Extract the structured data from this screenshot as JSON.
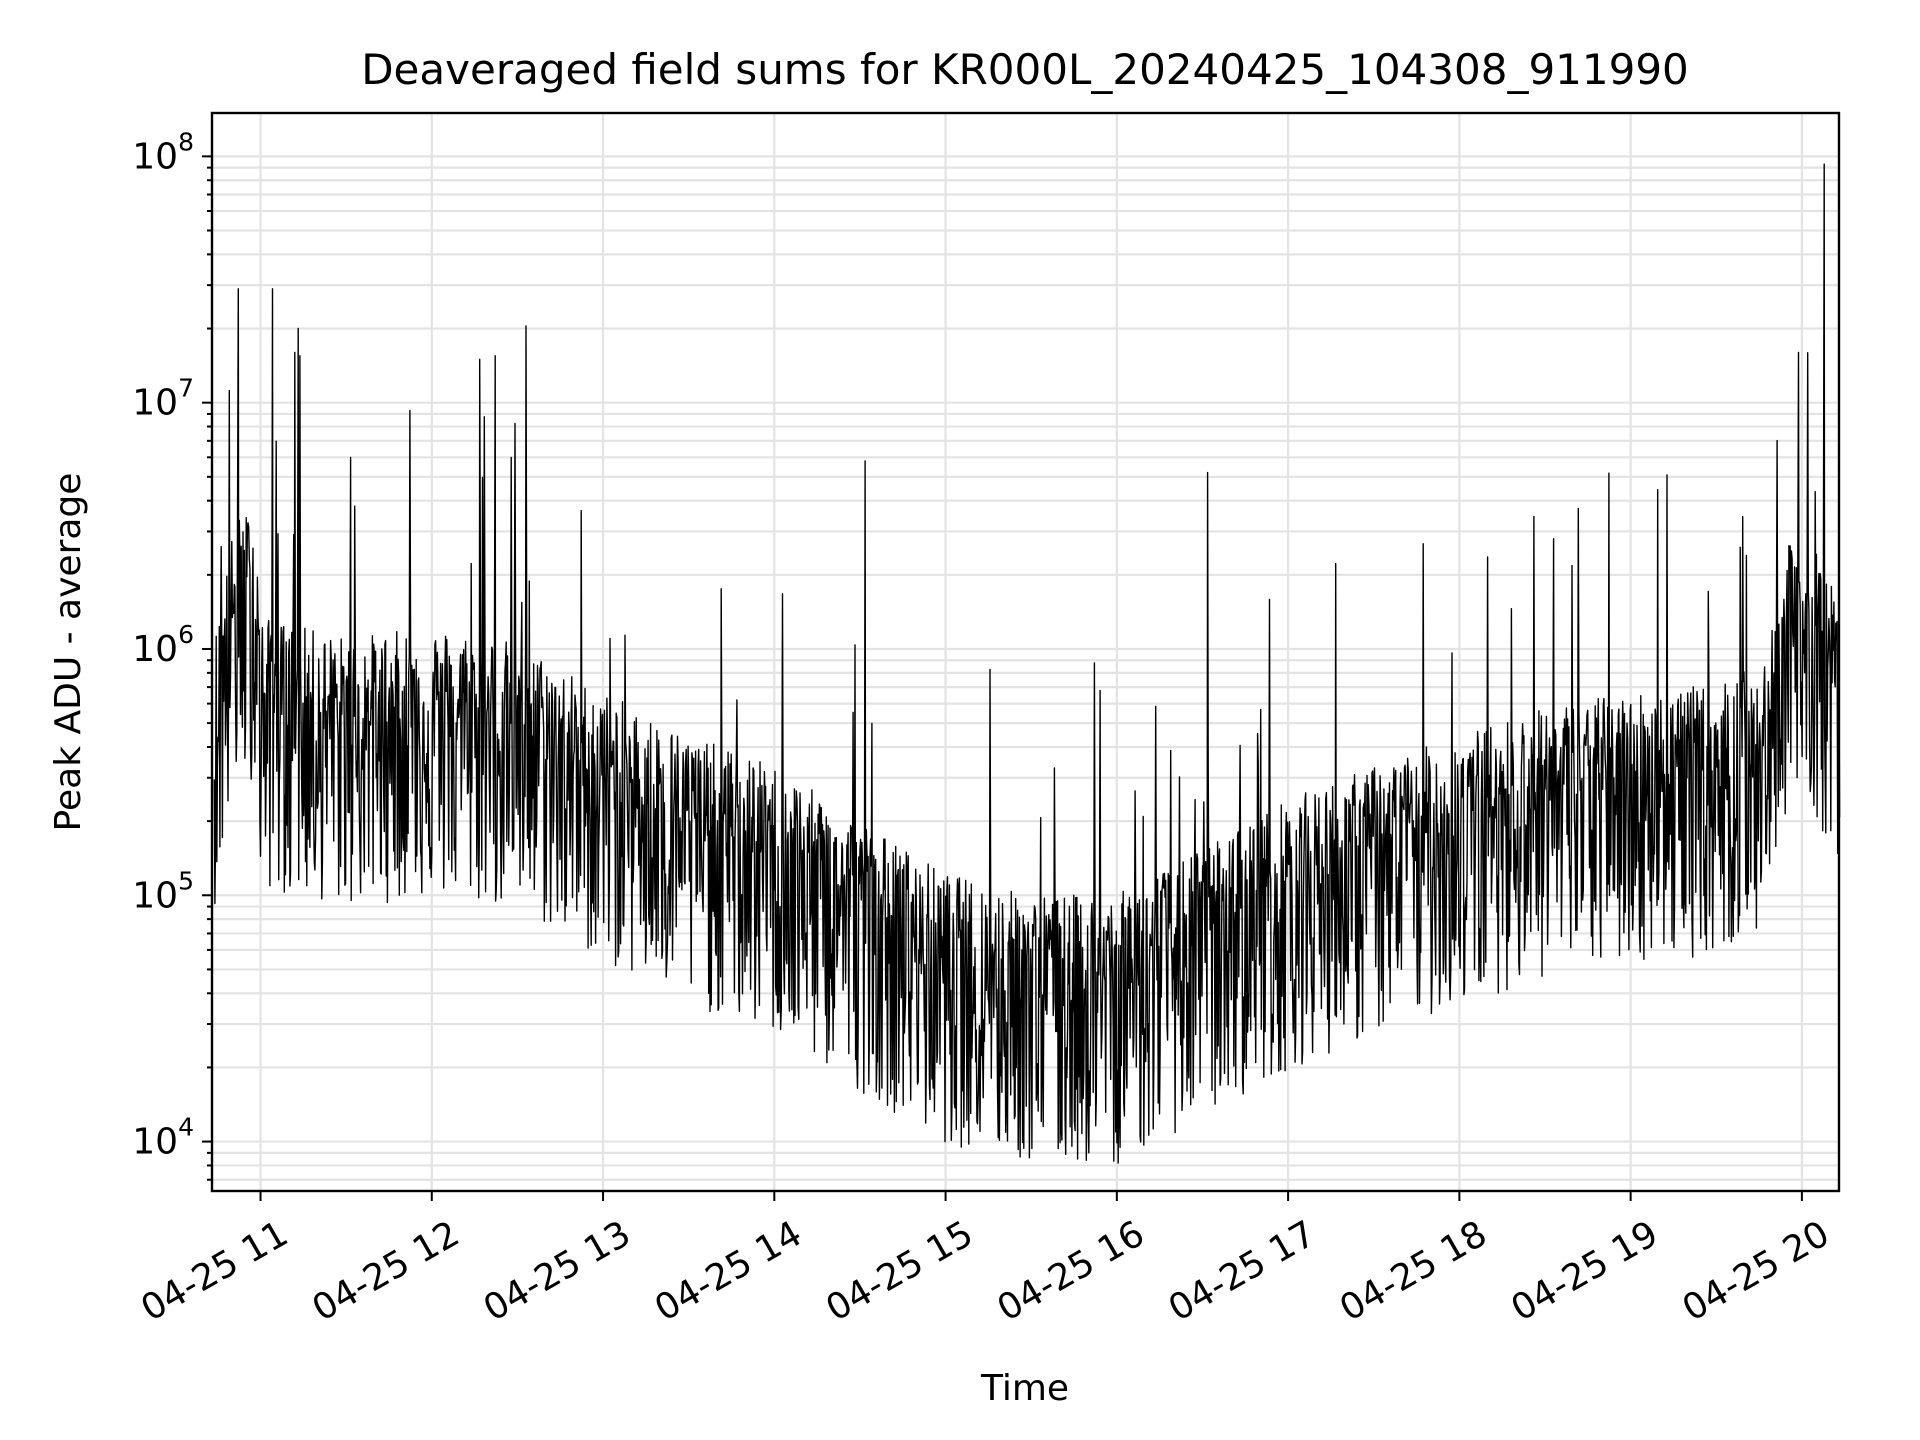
{
  "chart_data": {
    "type": "line",
    "title": "Deaveraged field sums for KR000L_20240425_104308_911990",
    "xlabel": "Time",
    "ylabel": "Peak ADU - average",
    "yscale": "log",
    "ylim": [
      6300,
      150000000
    ],
    "xlim": [
      "2024-04-25 10:43",
      "2024-04-25 20:13"
    ],
    "grid": true,
    "x_tick_labels": [
      "04-25 11",
      "04-25 12",
      "04-25 13",
      "04-25 14",
      "04-25 15",
      "04-25 16",
      "04-25 17",
      "04-25 18",
      "04-25 19",
      "04-25 20"
    ],
    "y_tick_labels": [
      {
        "base": "10",
        "exp": "4",
        "value": 10000
      },
      {
        "base": "10",
        "exp": "5",
        "value": 100000
      },
      {
        "base": "10",
        "exp": "6",
        "value": 1000000
      },
      {
        "base": "10",
        "exp": "7",
        "value": 10000000
      },
      {
        "base": "10",
        "exp": "8",
        "value": 100000000
      }
    ],
    "line_color": "#000000",
    "series": [
      {
        "x_unit": "hour of 2024-04-25",
        "baseline": [
          {
            "x": 10.73,
            "y": 500000
          },
          {
            "x": 10.85,
            "y": 1500000
          },
          {
            "x": 10.97,
            "y": 1700000
          },
          {
            "x": 11.0,
            "y": 600000
          },
          {
            "x": 11.5,
            "y": 500000
          },
          {
            "x": 12.0,
            "y": 550000
          },
          {
            "x": 12.5,
            "y": 480000
          },
          {
            "x": 13.0,
            "y": 300000
          },
          {
            "x": 13.5,
            "y": 200000
          },
          {
            "x": 14.0,
            "y": 150000
          },
          {
            "x": 14.5,
            "y": 90000
          },
          {
            "x": 15.0,
            "y": 55000
          },
          {
            "x": 15.5,
            "y": 45000
          },
          {
            "x": 16.0,
            "y": 45000
          },
          {
            "x": 16.5,
            "y": 70000
          },
          {
            "x": 17.0,
            "y": 110000
          },
          {
            "x": 17.5,
            "y": 150000
          },
          {
            "x": 18.0,
            "y": 200000
          },
          {
            "x": 18.5,
            "y": 260000
          },
          {
            "x": 19.0,
            "y": 300000
          },
          {
            "x": 19.5,
            "y": 320000
          },
          {
            "x": 19.8,
            "y": 400000
          },
          {
            "x": 19.9,
            "y": 1200000
          },
          {
            "x": 20.1,
            "y": 1100000
          },
          {
            "x": 20.22,
            "y": 700000
          }
        ],
        "spikes": [
          {
            "x": 10.87,
            "y": 29000000
          },
          {
            "x": 11.07,
            "y": 29000000
          },
          {
            "x": 11.2,
            "y": 16000000
          },
          {
            "x": 11.22,
            "y": 20000000
          },
          {
            "x": 11.23,
            "y": 15500000
          },
          {
            "x": 11.55,
            "y": 3800000
          },
          {
            "x": 12.28,
            "y": 15000000
          },
          {
            "x": 12.37,
            "y": 15500000
          },
          {
            "x": 12.55,
            "y": 20500000
          },
          {
            "x": 14.53,
            "y": 5800000
          },
          {
            "x": 16.53,
            "y": 5200000
          },
          {
            "x": 18.55,
            "y": 2800000
          },
          {
            "x": 20.13,
            "y": 93000000
          },
          {
            "x": 19.98,
            "y": 16000000
          }
        ]
      }
    ]
  }
}
